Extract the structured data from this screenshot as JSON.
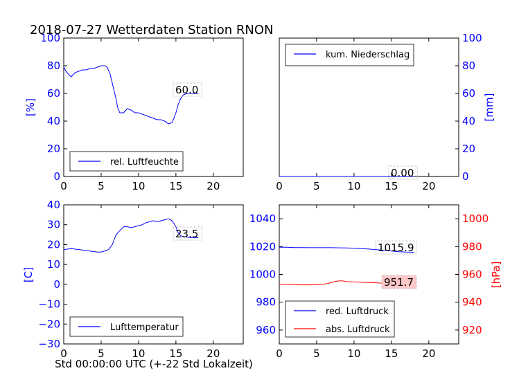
{
  "title": "2018-07-27 Wetterdaten Station RNON",
  "xlabel": "Std 00:00:00 UTC (+-22 Std Lokalzeit)",
  "colors": {
    "blue": "#0000ff",
    "red": "#ff0000",
    "annot_red_bg": "#ffc8c8"
  },
  "chart_data": [
    {
      "type": "line",
      "panel": "top-left",
      "xlim": [
        0,
        24
      ],
      "ylim": [
        0,
        100
      ],
      "xticks": [
        "0",
        "5",
        "10",
        "15",
        "20"
      ],
      "yticks": [
        "0",
        "20",
        "40",
        "60",
        "80",
        "100"
      ],
      "ylabel": "[%]",
      "legend_position": "lower-left",
      "series": [
        {
          "name": "rel. Luftfeuchte",
          "color": "#0000ff",
          "x": [
            0,
            0.3,
            0.6,
            1.0,
            1.5,
            2.0,
            2.5,
            3.0,
            3.5,
            4.0,
            4.5,
            5.0,
            5.5,
            5.8,
            6.2,
            6.6,
            7.0,
            7.2,
            7.5,
            8.0,
            8.5,
            9.0,
            9.5,
            10.0,
            10.5,
            11.0,
            11.5,
            12.0,
            12.5,
            13.0,
            13.5,
            14.0,
            14.5,
            15.0,
            15.3,
            15.6,
            16.0,
            16.5,
            17.0,
            17.5,
            18.0
          ],
          "y": [
            79,
            76,
            74,
            72,
            75,
            76,
            77,
            77,
            78,
            78,
            79,
            80,
            80,
            79,
            74,
            65,
            56,
            50,
            46,
            46,
            49,
            48,
            46,
            46,
            45,
            44,
            43,
            42,
            41,
            41,
            40,
            38,
            39,
            46,
            52,
            56,
            59,
            60,
            60,
            60,
            60
          ]
        }
      ],
      "annotation": "60.0"
    },
    {
      "type": "line",
      "panel": "top-right",
      "xlim": [
        0,
        24
      ],
      "ylim": [
        0,
        100
      ],
      "xticks": [
        "0",
        "5",
        "10",
        "15",
        "20"
      ],
      "yticks": [
        "0",
        "20",
        "40",
        "60",
        "80",
        "100"
      ],
      "ylabel": "[mm]",
      "legend_position": "top-left",
      "series": [
        {
          "name": "kum. Niederschlag",
          "color": "#0000ff",
          "x": [
            0,
            18
          ],
          "y": [
            0,
            0
          ]
        }
      ],
      "annotation": "0.00"
    },
    {
      "type": "line",
      "panel": "bottom-left",
      "xlim": [
        0,
        24
      ],
      "ylim": [
        -30,
        40
      ],
      "xticks": [
        "0",
        "5",
        "10",
        "15",
        "20"
      ],
      "yticks": [
        "−30",
        "−20",
        "−10",
        "0",
        "10",
        "20",
        "30",
        "40"
      ],
      "ytick_values": [
        -30,
        -20,
        -10,
        0,
        10,
        20,
        30,
        40
      ],
      "ylabel": "[C]",
      "legend_position": "lower-left",
      "series": [
        {
          "name": "Lufttemperatur",
          "color": "#0000ff",
          "x": [
            0,
            1,
            2,
            3,
            4,
            4.5,
            5,
            5.5,
            6,
            6.5,
            7,
            7.5,
            8,
            8.5,
            9,
            9.5,
            10,
            10.5,
            11,
            11.5,
            12,
            12.5,
            13,
            13.5,
            14,
            14.5,
            15,
            15.3,
            15.6,
            16,
            17,
            18
          ],
          "y": [
            17.5,
            18,
            17.5,
            17,
            16.5,
            16.2,
            16.3,
            16.8,
            17.5,
            20,
            25,
            27,
            29,
            29,
            28.5,
            29,
            29.5,
            30,
            31,
            31.5,
            32,
            31.5,
            32,
            32.5,
            33,
            32,
            29,
            26,
            24.5,
            24,
            23.5,
            23.5
          ]
        }
      ],
      "annotation": "23.5"
    },
    {
      "type": "line",
      "panel": "bottom-right",
      "xlim": [
        0,
        24
      ],
      "ylim_left": [
        950,
        1050
      ],
      "ylim_right": [
        910,
        1010
      ],
      "xticks": [
        "0",
        "5",
        "10",
        "15",
        "20"
      ],
      "yticks_left": [
        "960",
        "980",
        "1000",
        "1020",
        "1040"
      ],
      "ytick_values_left": [
        960,
        980,
        1000,
        1020,
        1040
      ],
      "yticks_right": [
        "920",
        "940",
        "960",
        "980",
        "1000"
      ],
      "ytick_values_right": [
        920,
        940,
        960,
        980,
        1000
      ],
      "ylabel_right": "[hPa]",
      "legend_position": "lower-left",
      "series": [
        {
          "name": "red. Luftdruck",
          "color": "#0000ff",
          "axis": "left",
          "x": [
            0,
            1,
            2,
            3,
            4,
            5,
            6,
            7,
            8,
            9,
            10,
            11,
            12,
            13,
            14,
            15,
            16,
            17,
            18
          ],
          "y": [
            1019.5,
            1019.5,
            1019.3,
            1019.3,
            1019.2,
            1019.2,
            1019.2,
            1019.2,
            1019.1,
            1019,
            1018.8,
            1018.5,
            1018.2,
            1017.8,
            1017.3,
            1016.8,
            1016.3,
            1016,
            1015.9
          ]
        },
        {
          "name": "abs. Luftdruck",
          "color": "#ff0000",
          "axis": "right",
          "x": [
            0,
            1,
            2,
            3,
            4,
            5,
            6,
            6.5,
            7,
            7.5,
            8,
            8.5,
            9,
            10,
            11,
            12,
            13,
            14,
            15,
            16,
            17,
            18
          ],
          "y": [
            952.8,
            952.8,
            952.7,
            952.5,
            952.5,
            952.6,
            953,
            953.5,
            954.3,
            955,
            955.3,
            955.3,
            954.8,
            954.6,
            954.4,
            954.2,
            954,
            953.6,
            953,
            952.3,
            951.8,
            951.7
          ]
        }
      ],
      "annotations": [
        "1015.9",
        "951.7"
      ]
    }
  ]
}
